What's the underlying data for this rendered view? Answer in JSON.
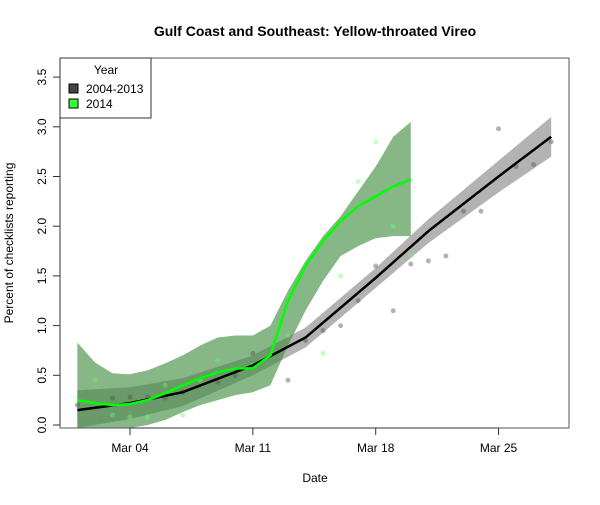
{
  "chart_data": {
    "type": "line",
    "title": "Gulf Coast and Southeast: Yellow-throated Vireo",
    "xlabel": "Date",
    "ylabel": "Percent of checklists reporting",
    "xlim_day": [
      0,
      29
    ],
    "ylim": [
      0,
      3.5
    ],
    "x_ticks": [
      {
        "day": 4,
        "label": "Mar 04"
      },
      {
        "day": 11,
        "label": "Mar 11"
      },
      {
        "day": 18,
        "label": "Mar 18"
      },
      {
        "day": 25,
        "label": "Mar 25"
      }
    ],
    "y_ticks": [
      "0.0",
      "0.5",
      "1.0",
      "1.5",
      "2.0",
      "2.5",
      "3.0",
      "3.5"
    ],
    "legend": {
      "title": "Year",
      "placement": "top-left",
      "entries": [
        {
          "label": "2004-2013",
          "color": "#444444"
        },
        {
          "label": "2014",
          "color": "#33ff33"
        }
      ]
    },
    "series": [
      {
        "name": "2004-2013",
        "line_color": "#000000",
        "band_color": "#999999",
        "fit_x": [
          1,
          4,
          7,
          11,
          14,
          18,
          21,
          25,
          28
        ],
        "fit_y": [
          0.15,
          0.22,
          0.33,
          0.6,
          0.88,
          1.48,
          1.95,
          2.5,
          2.9
        ],
        "band_upper": [
          0.35,
          0.38,
          0.47,
          0.7,
          0.98,
          1.58,
          2.07,
          2.66,
          3.1
        ],
        "band_lower": [
          -0.05,
          0.06,
          0.19,
          0.5,
          0.78,
          1.38,
          1.83,
          2.34,
          2.7
        ],
        "points_x": [
          1,
          3,
          4,
          5,
          6,
          7,
          9,
          10,
          11,
          13,
          14,
          15,
          16,
          17,
          18,
          19,
          20,
          21,
          22,
          23,
          24,
          25,
          26,
          27,
          28
        ],
        "points_y": [
          0.2,
          0.27,
          0.28,
          0.28,
          0.27,
          0.33,
          0.43,
          0.5,
          0.72,
          0.45,
          0.85,
          0.95,
          1.0,
          1.25,
          1.6,
          1.15,
          1.62,
          1.65,
          1.7,
          2.15,
          2.15,
          2.98,
          2.6,
          2.62,
          2.85
        ]
      },
      {
        "name": "2014",
        "line_color": "#00ff00",
        "band_color": "#3d8a3d",
        "fit_x": [
          1,
          2,
          3,
          4,
          5,
          6,
          7,
          8,
          9,
          10,
          11,
          12,
          13,
          14,
          15,
          16,
          17,
          18,
          19,
          20
        ],
        "fit_y": [
          0.25,
          0.22,
          0.2,
          0.21,
          0.25,
          0.32,
          0.4,
          0.47,
          0.53,
          0.57,
          0.57,
          0.7,
          1.25,
          1.6,
          1.85,
          2.05,
          2.2,
          2.3,
          2.4,
          2.47
        ],
        "band_upper": [
          0.83,
          0.63,
          0.52,
          0.51,
          0.55,
          0.62,
          0.7,
          0.8,
          0.88,
          0.9,
          0.9,
          1.0,
          1.35,
          1.65,
          1.9,
          2.1,
          2.35,
          2.6,
          2.9,
          3.05
        ],
        "band_lower": [
          -0.05,
          -0.05,
          -0.05,
          -0.05,
          0.0,
          0.05,
          0.13,
          0.2,
          0.25,
          0.3,
          0.33,
          0.4,
          0.8,
          1.15,
          1.45,
          1.7,
          1.8,
          1.88,
          1.9,
          1.9
        ],
        "points_x": [
          2,
          3,
          4,
          5,
          6,
          7,
          8,
          9,
          11,
          13,
          15,
          16,
          17,
          18,
          19,
          20
        ],
        "points_y": [
          0.45,
          0.1,
          0.08,
          0.08,
          0.4,
          0.1,
          0.45,
          0.65,
          0.6,
          0.9,
          0.72,
          1.5,
          2.45,
          2.85,
          2.0,
          1.7
        ]
      }
    ]
  }
}
